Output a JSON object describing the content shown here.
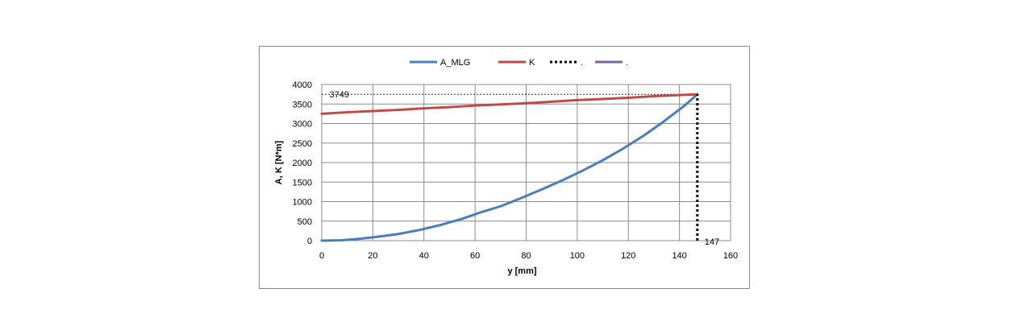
{
  "chart_data": {
    "type": "line",
    "xlabel": "y [mm]",
    "ylabel": "A, K [N*m]",
    "xlim": [
      0,
      160
    ],
    "ylim": [
      0,
      4000
    ],
    "xticks": [
      0,
      20,
      40,
      60,
      80,
      100,
      120,
      140,
      160
    ],
    "yticks": [
      0,
      500,
      1000,
      1500,
      2000,
      2500,
      3000,
      3500,
      4000
    ],
    "grid": true,
    "legend_position": "top",
    "series": [
      {
        "name": "A_MLG",
        "color": "#4a7ebb",
        "style": "solid",
        "x": [
          0,
          8,
          15,
          22,
          30,
          38,
          47,
          55,
          62,
          70,
          78,
          86,
          94,
          102,
          110,
          118,
          126,
          134,
          142,
          147
        ],
        "y": [
          0,
          10,
          50,
          100,
          170,
          270,
          410,
          560,
          720,
          880,
          1090,
          1310,
          1540,
          1790,
          2060,
          2360,
          2690,
          3060,
          3460,
          3749
        ]
      },
      {
        "name": "K",
        "color": "#be4b48",
        "style": "solid",
        "x": [
          0,
          10,
          20,
          30,
          40,
          50,
          60,
          70,
          80,
          90,
          100,
          110,
          120,
          130,
          140,
          147
        ],
        "y": [
          3250,
          3290,
          3320,
          3350,
          3390,
          3420,
          3460,
          3490,
          3520,
          3560,
          3600,
          3630,
          3660,
          3700,
          3730,
          3749
        ]
      },
      {
        "name": ".",
        "color": "#000000",
        "style": "dashed",
        "x": [
          147,
          147
        ],
        "y": [
          0,
          3749
        ]
      },
      {
        "name": ".",
        "color": "#7d60a0",
        "style": "solid",
        "x": [],
        "y": []
      }
    ],
    "reference_line": {
      "y": 3749,
      "x_from": 0,
      "x_to": 147
    },
    "annotations": [
      {
        "text": "3749",
        "x": 3,
        "y": 3749
      },
      {
        "text": "147",
        "x": 147,
        "y": 0
      }
    ]
  }
}
